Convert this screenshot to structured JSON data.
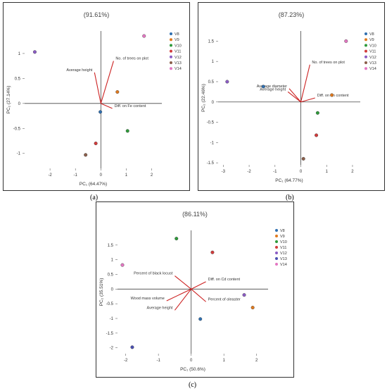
{
  "chart_data": [
    {
      "type": "scatter",
      "subtype": "biplot",
      "panel_label": "(a)",
      "title": "(91.61%)",
      "xlabel": "PC₁ (64.47%)",
      "ylabel": "PC₂ (27.14%)",
      "xlim": [
        -3,
        2.4
      ],
      "ylim": [
        -1.3,
        1.45
      ],
      "xticks": [
        -2,
        -1,
        0,
        1,
        2
      ],
      "yticks": [
        -1,
        -0.5,
        0,
        0.5,
        1
      ],
      "legend_position": "top-right",
      "series": [
        {
          "name": "V8",
          "color": "#2f6fb0",
          "x": [
            -0.02
          ],
          "y": [
            -0.17
          ]
        },
        {
          "name": "V9",
          "color": "#e07a1f",
          "x": [
            0.65
          ],
          "y": [
            0.23
          ]
        },
        {
          "name": "V10",
          "color": "#2e9a3a",
          "x": [
            1.05
          ],
          "y": [
            -0.55
          ]
        },
        {
          "name": "V11",
          "color": "#d23b3b",
          "x": [
            -0.2
          ],
          "y": [
            -0.8
          ]
        },
        {
          "name": "V12",
          "color": "#8b5cc4",
          "x": [
            -2.6
          ],
          "y": [
            1.03
          ]
        },
        {
          "name": "V13",
          "color": "#8b5e4a",
          "x": [
            -0.6
          ],
          "y": [
            -1.03
          ]
        },
        {
          "name": "V14",
          "color": "#e377c2",
          "x": [
            1.7
          ],
          "y": [
            1.35
          ]
        }
      ],
      "vectors": [
        {
          "label": "No. of trees on plot",
          "x": 0.5,
          "y": 0.85,
          "label_anchor": "start"
        },
        {
          "label": "Average  height",
          "x": -0.25,
          "y": 0.62,
          "label_anchor": "end"
        },
        {
          "label": "Diff. on Fe content",
          "x": 0.45,
          "y": -0.1,
          "label_anchor": "start"
        }
      ]
    },
    {
      "type": "scatter",
      "subtype": "biplot",
      "panel_label": "(b)",
      "title": "(87.23%)",
      "xlabel": "PC₁ (64.77%)",
      "ylabel": "PC₂ (22.46%)",
      "xlim": [
        -3.2,
        2.3
      ],
      "ylim": [
        -1.55,
        1.75
      ],
      "xticks": [
        -3,
        -2,
        -1,
        0,
        1,
        2
      ],
      "yticks": [
        -1.5,
        -1,
        -0.5,
        0,
        0.5,
        1,
        1.5
      ],
      "legend_position": "top-right",
      "series": [
        {
          "name": "V8",
          "color": "#2f6fb0",
          "x": [
            -1.45
          ],
          "y": [
            0.38
          ]
        },
        {
          "name": "V9",
          "color": "#e07a1f",
          "x": [
            1.2
          ],
          "y": [
            0.17
          ]
        },
        {
          "name": "V10",
          "color": "#2e9a3a",
          "x": [
            0.65
          ],
          "y": [
            -0.27
          ]
        },
        {
          "name": "V11",
          "color": "#d23b3b",
          "x": [
            0.6
          ],
          "y": [
            -0.82
          ]
        },
        {
          "name": "V12",
          "color": "#8b5cc4",
          "x": [
            -2.85
          ],
          "y": [
            0.5
          ]
        },
        {
          "name": "V13",
          "color": "#8b5e4a",
          "x": [
            0.1
          ],
          "y": [
            -1.4
          ]
        },
        {
          "name": "V14",
          "color": "#e377c2",
          "x": [
            1.75
          ],
          "y": [
            1.5
          ]
        }
      ],
      "vectors": [
        {
          "label": "No. of trees on plot",
          "x": 0.35,
          "y": 0.92,
          "label_anchor": "start"
        },
        {
          "label": "Average diameter",
          "x": -0.45,
          "y": 0.33,
          "label_anchor": "end"
        },
        {
          "label": "Average  height",
          "x": -0.5,
          "y": 0.25,
          "label_anchor": "end"
        },
        {
          "label": "Diff. on Zn content",
          "x": 0.55,
          "y": 0.1,
          "label_anchor": "start"
        }
      ]
    },
    {
      "type": "scatter",
      "subtype": "biplot",
      "panel_label": "(c)",
      "title": "(86.11%)",
      "xlabel": "PC₁ (50.6%)",
      "ylabel": "PC₂ (35.51%)",
      "xlim": [
        -2.25,
        2.35
      ],
      "ylim": [
        -2.2,
        2.0
      ],
      "xticks": [
        -2,
        -1,
        0,
        1,
        2
      ],
      "yticks": [
        -2,
        -1.5,
        -1,
        -0.5,
        0,
        0.5,
        1,
        1.5
      ],
      "legend_position": "top-right",
      "series": [
        {
          "name": "V8",
          "color": "#2f6fb0",
          "x": [
            0.28
          ],
          "y": [
            -1.02
          ]
        },
        {
          "name": "V9",
          "color": "#e07a1f",
          "x": [
            1.88
          ],
          "y": [
            -0.63
          ]
        },
        {
          "name": "V10",
          "color": "#2e9a3a",
          "x": [
            -0.45
          ],
          "y": [
            1.72
          ]
        },
        {
          "name": "V11",
          "color": "#d23b3b",
          "x": [
            0.65
          ],
          "y": [
            1.25
          ]
        },
        {
          "name": "V12",
          "color": "#8b5cc4",
          "x": [
            1.62
          ],
          "y": [
            -0.2
          ]
        },
        {
          "name": "V13",
          "color": "#4a4fb0",
          "x": [
            -1.8
          ],
          "y": [
            -1.98
          ]
        },
        {
          "name": "V14",
          "color": "#e377c2",
          "x": [
            -2.1
          ],
          "y": [
            0.82
          ]
        }
      ],
      "vectors": [
        {
          "label": "Diff. on Cd content",
          "x": 0.45,
          "y": 0.25,
          "label_anchor": "start"
        },
        {
          "label": "Percent of black locust",
          "x": -0.5,
          "y": 0.45,
          "label_anchor": "end"
        },
        {
          "label": "Wood mass volume",
          "x": -0.75,
          "y": -0.4,
          "label_anchor": "end"
        },
        {
          "label": "Average height",
          "x": -0.5,
          "y": -0.72,
          "label_anchor": "end"
        },
        {
          "label": "Percent of  oleaster",
          "x": 0.45,
          "y": -0.43,
          "label_anchor": "start"
        }
      ]
    }
  ]
}
